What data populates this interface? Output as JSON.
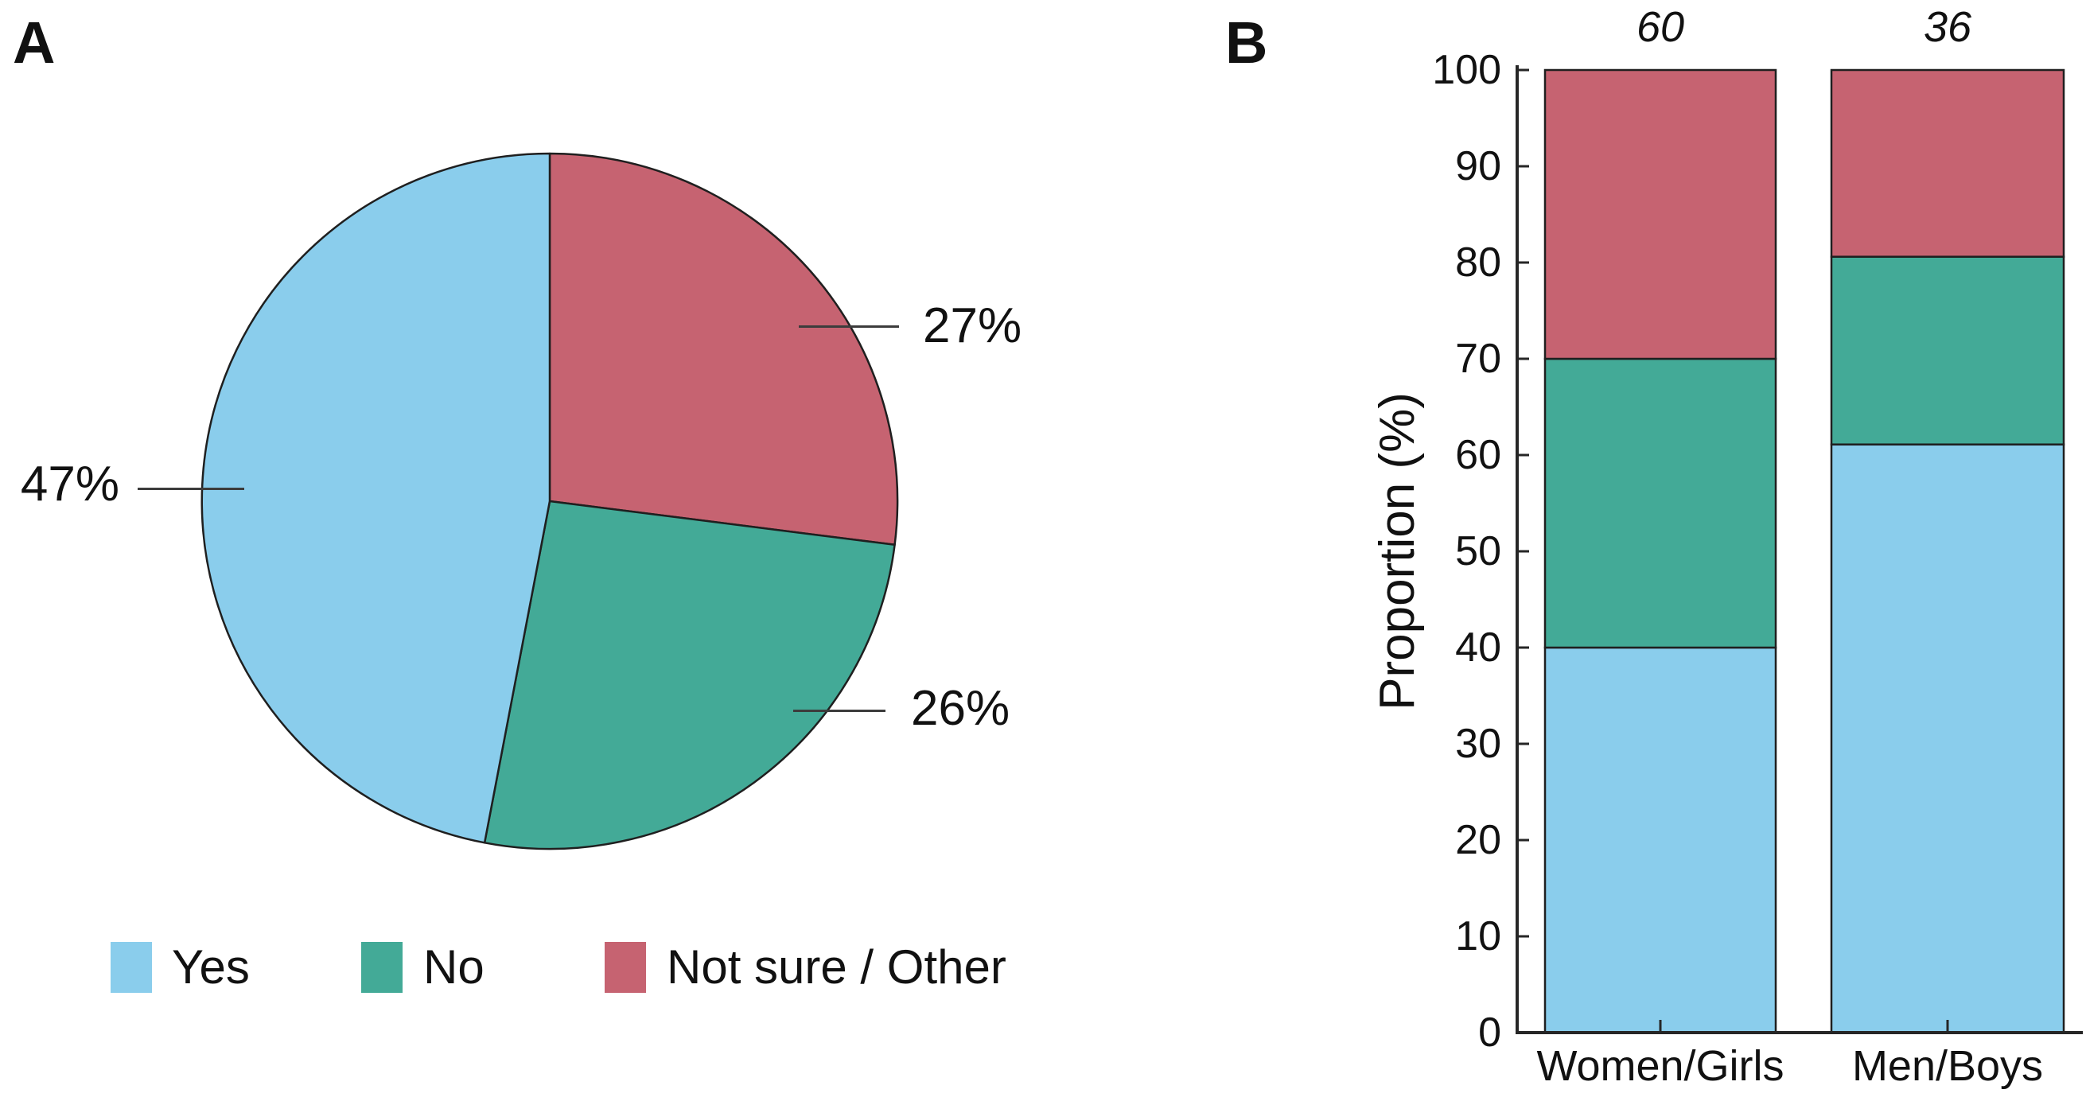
{
  "panels": {
    "a": {
      "label": "A"
    },
    "b": {
      "label": "B"
    }
  },
  "colors": {
    "yes_blue": "#8ACDEC",
    "no_green": "#43AA97",
    "notsure_red": "#C66371",
    "outline": "#1f1f1f",
    "axis": "#262626",
    "leader": "#3c3c3c",
    "text": "#111111"
  },
  "chart_data": [
    {
      "type": "pie",
      "title": "",
      "slices": [
        {
          "label": "Yes",
          "value_pct": 47,
          "display": "47%",
          "color_key": "yes_blue"
        },
        {
          "label": "No",
          "value_pct": 26,
          "display": "26%",
          "color_key": "no_green"
        },
        {
          "label": "Not sure / Other",
          "value_pct": 27,
          "display": "27%",
          "color_key": "notsure_red"
        }
      ],
      "start_angle_deg": 90,
      "direction": "counterclockwise",
      "legend_position": "bottom"
    },
    {
      "type": "bar",
      "subtype": "stacked",
      "categories": [
        "Women/Girls",
        "Men/Boys"
      ],
      "group_sizes": [
        "60",
        "36"
      ],
      "series": [
        {
          "name": "Yes",
          "values_pct": [
            40.0,
            61.1
          ],
          "color_key": "yes_blue"
        },
        {
          "name": "No",
          "values_pct": [
            30.0,
            19.5
          ],
          "color_key": "no_green"
        },
        {
          "name": "Not sure / Other",
          "values_pct": [
            30.0,
            19.4
          ],
          "color_key": "notsure_red"
        }
      ],
      "ylabel": "Proportion (%)",
      "ylim": [
        0,
        100
      ],
      "yticks": [
        0,
        10,
        20,
        30,
        40,
        50,
        60,
        70,
        80,
        90,
        100
      ],
      "grid": false,
      "legend_position": "none"
    }
  ]
}
